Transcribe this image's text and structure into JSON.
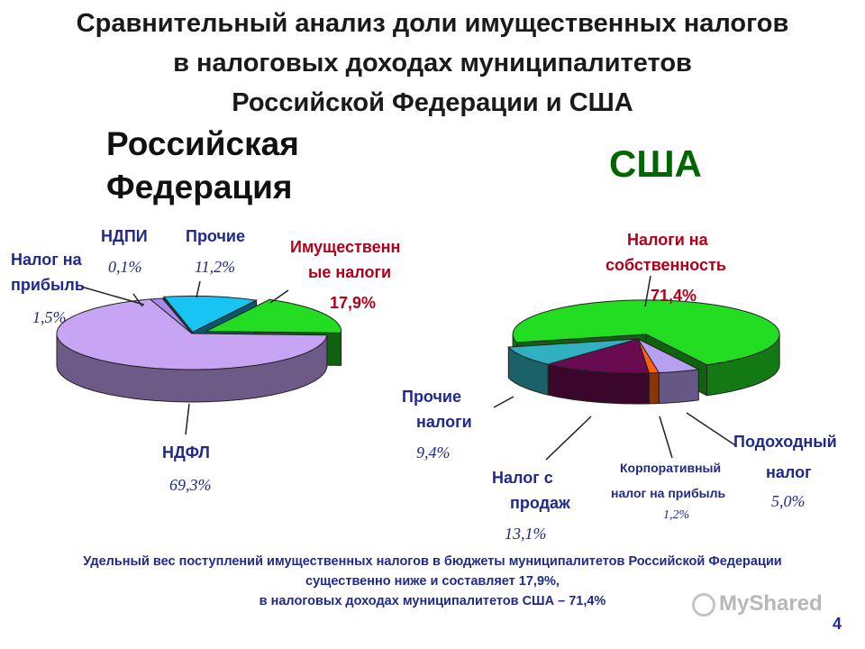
{
  "title": {
    "line1": "Сравнительный анализ доли имущественных налогов",
    "line2": "в налоговых доходах муниципалитетов",
    "line3": "Российской Федерации и США"
  },
  "footer": {
    "line1": "Удельный вес поступлений имущественных налогов в бюджеты муниципалитетов Российской Федерации",
    "line2": "существенно ниже и составляет 17,9%,",
    "line3": "в налоговых доходах муниципалитетов США – 71,4%"
  },
  "page_number": "4",
  "watermark": "MyShared",
  "colors": {
    "property": "#22dd22",
    "ndfl": "#c8a4f4",
    "ndpi": "#ff6a20",
    "other_rf": "#18c4f4",
    "profit_rf": "#aa88e8",
    "sales": "#6a0a50",
    "other_us": "#30b0c0",
    "corp": "#ff6010",
    "income_us": "#b8a0f0"
  },
  "chart_data": [
    {
      "type": "pie",
      "title": "Российская Федерация",
      "slices": [
        {
          "label_lines": [
            "Имущественн",
            "ые налоги"
          ],
          "value": 17.9,
          "value_label": "17,9%",
          "color_key": "property"
        },
        {
          "label_lines": [
            "НДФЛ"
          ],
          "value": 69.3,
          "value_label": "69,3%",
          "color_key": "ndfl"
        },
        {
          "label_lines": [
            "Налог на",
            "прибыль"
          ],
          "value": 1.5,
          "value_label": "1,5%",
          "color_key": "profit_rf"
        },
        {
          "label_lines": [
            "НДПИ"
          ],
          "value": 0.1,
          "value_label": "0,1%",
          "color_key": "ndpi"
        },
        {
          "label_lines": [
            "Прочие"
          ],
          "value": 11.2,
          "value_label": "11,2%",
          "color_key": "other_rf"
        }
      ]
    },
    {
      "type": "pie",
      "title": "США",
      "slices": [
        {
          "label_lines": [
            "Налоги на",
            "собственность"
          ],
          "value": 71.4,
          "value_label": "71,4%",
          "color_key": "property"
        },
        {
          "label_lines": [
            "Подоходный",
            "налог"
          ],
          "value": 5.0,
          "value_label": "5,0%",
          "color_key": "income_us"
        },
        {
          "label_lines": [
            "Корпоративный",
            "налог на прибыль"
          ],
          "value": 1.2,
          "value_label": "1,2%",
          "color_key": "corp"
        },
        {
          "label_lines": [
            "Налог с",
            "продаж"
          ],
          "value": 13.1,
          "value_label": "13,1%",
          "color_key": "sales"
        },
        {
          "label_lines": [
            "Прочие",
            "налоги"
          ],
          "value": 9.4,
          "value_label": "9,4%",
          "color_key": "other_us"
        }
      ]
    }
  ]
}
